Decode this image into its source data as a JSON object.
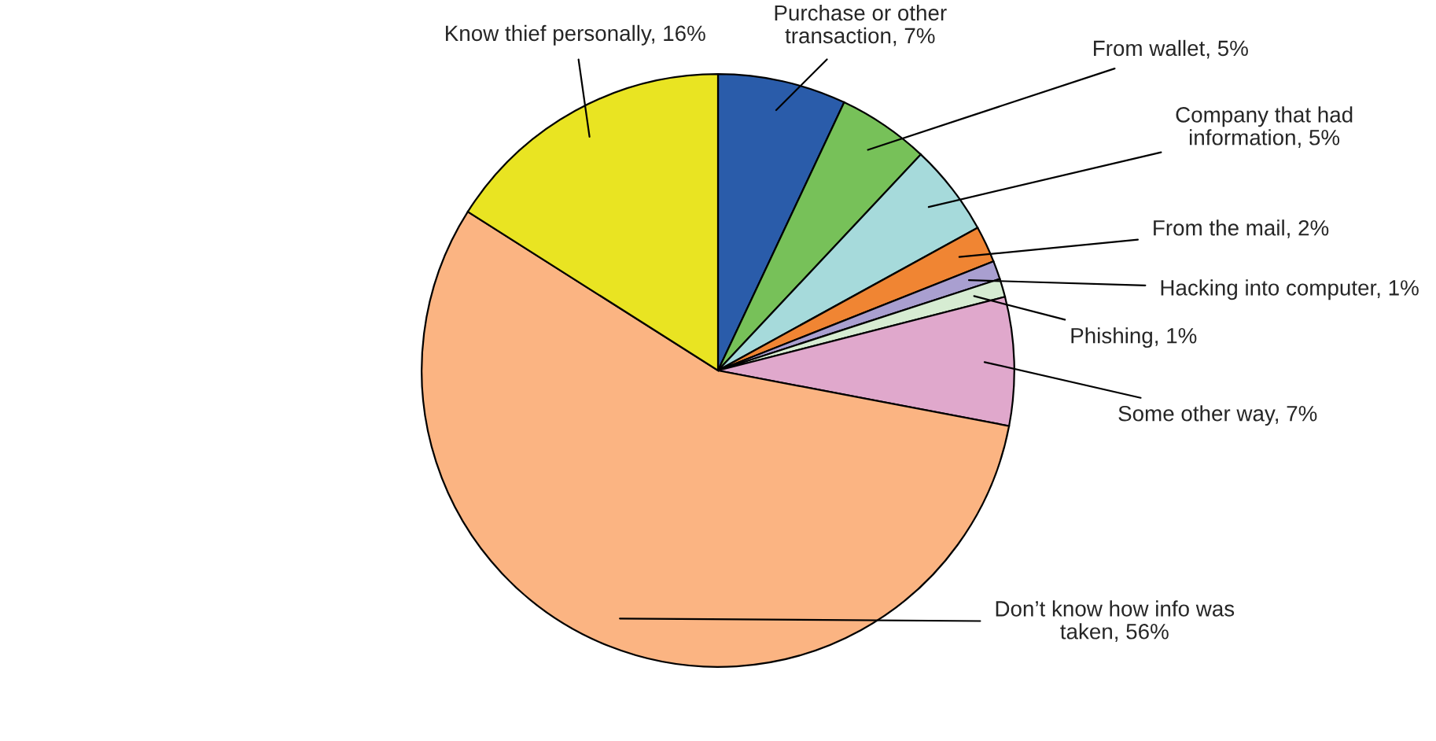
{
  "chart_data": {
    "type": "pie",
    "categories": [
      "Purchase or other transaction",
      "From wallet",
      "Company that had information",
      "From the mail",
      "Hacking into computer",
      "Phishing",
      "Some other way",
      "Don’t know how info was taken",
      "Know thief personally"
    ],
    "values": [
      7,
      5,
      5,
      2,
      1,
      1,
      7,
      56,
      16
    ],
    "value_labels": [
      "7%",
      "5%",
      "5%",
      "2%",
      "1%",
      "1%",
      "7%",
      "56%",
      "16%"
    ],
    "colors": [
      "#2a5caa",
      "#77c159",
      "#a6dadb",
      "#f08533",
      "#a99fd0",
      "#d6ecd2",
      "#e0a8cc",
      "#fbb482",
      "#e9e422"
    ]
  }
}
